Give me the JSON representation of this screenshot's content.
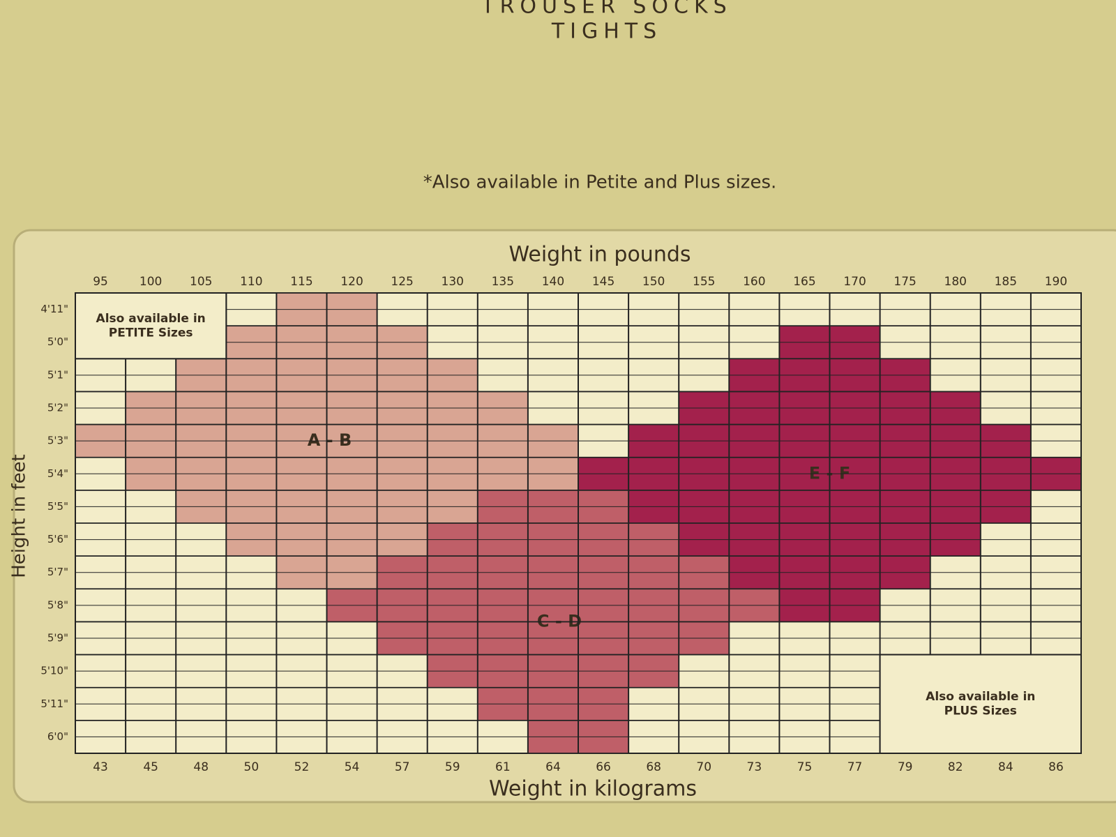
{
  "header": {
    "line1": "TROUSER SOCKS",
    "line2": "TIGHTS",
    "note": "*Also available in Petite and Plus sizes."
  },
  "chart": {
    "top_axis_title": "Weight in pounds",
    "bottom_axis_title": "Weight in kilograms",
    "left_axis_title": "Height in feet",
    "pounds": [
      95,
      100,
      105,
      110,
      115,
      120,
      125,
      130,
      135,
      140,
      145,
      150,
      155,
      160,
      165,
      170,
      175,
      180,
      185,
      190
    ],
    "kilograms": [
      43,
      45,
      48,
      50,
      52,
      54,
      57,
      59,
      61,
      64,
      66,
      68,
      70,
      73,
      75,
      77,
      79,
      82,
      84,
      86
    ],
    "heights": [
      "4'11\"",
      "5'0\"",
      "5'1\"",
      "5'2\"",
      "5'3\"",
      "5'4\"",
      "5'5\"",
      "5'6\"",
      "5'7\"",
      "5'8\"",
      "5'9\"",
      "5'10\"",
      "5'11\"",
      "6'0\""
    ],
    "petite_note": "Also available in PETITE Sizes",
    "plus_note": "Also available in PLUS Sizes",
    "regions": [
      {
        "label": "A - B",
        "color": "#d9a593",
        "ranges": [
          [
            115,
            120
          ],
          [
            110,
            125
          ],
          [
            105,
            130
          ],
          [
            100,
            135
          ],
          [
            95,
            140
          ],
          [
            100,
            140
          ],
          [
            105,
            130
          ],
          [
            110,
            125
          ],
          [
            115,
            120
          ],
          null,
          null,
          null,
          null,
          null
        ]
      },
      {
        "label": "C - D",
        "color": "#bf5f68",
        "ranges": [
          null,
          null,
          null,
          null,
          null,
          null,
          [
            135,
            145
          ],
          [
            130,
            150
          ],
          [
            125,
            155
          ],
          [
            120,
            165
          ],
          [
            125,
            155
          ],
          [
            130,
            150
          ],
          [
            135,
            145
          ],
          [
            140,
            145
          ]
        ]
      },
      {
        "label": "E - F",
        "color": "#a3214c",
        "ranges": [
          null,
          [
            165,
            170
          ],
          [
            160,
            175
          ],
          [
            155,
            180
          ],
          [
            150,
            185
          ],
          [
            145,
            190
          ],
          [
            150,
            185
          ],
          [
            155,
            180
          ],
          [
            160,
            175
          ],
          [
            165,
            170
          ],
          null,
          null,
          null,
          null
        ]
      }
    ]
  }
}
